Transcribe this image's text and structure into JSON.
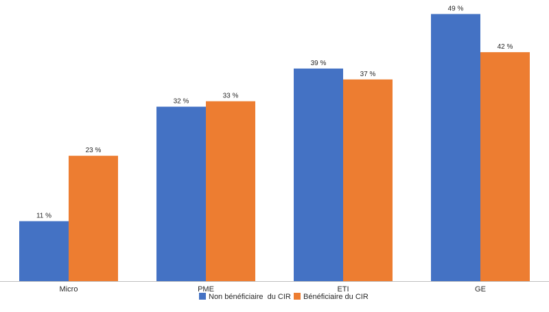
{
  "chart_data": {
    "type": "bar",
    "title": "",
    "xlabel": "",
    "ylabel": "",
    "ylim": [
      0,
      50
    ],
    "grid": false,
    "legend_position": "bottom",
    "categories": [
      "Micro",
      "PME",
      "ETI",
      "GE"
    ],
    "series": [
      {
        "name": "Non bénéficiaire  du CIR",
        "color": "#4472C4",
        "values": [
          11,
          32,
          39,
          49
        ],
        "labels": [
          "11 %",
          "32 %",
          "39 %",
          "49 %"
        ]
      },
      {
        "name": "Bénéficiaire du CIR",
        "color": "#ED7D31",
        "values": [
          23,
          33,
          37,
          42
        ],
        "labels": [
          "23 %",
          "33 %",
          "37 %",
          "42 %"
        ]
      }
    ]
  }
}
